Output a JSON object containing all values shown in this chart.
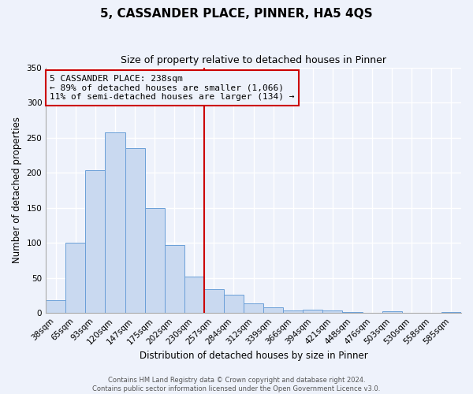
{
  "title": "5, CASSANDER PLACE, PINNER, HA5 4QS",
  "subtitle": "Size of property relative to detached houses in Pinner",
  "xlabel": "Distribution of detached houses by size in Pinner",
  "ylabel": "Number of detached properties",
  "bar_labels": [
    "38sqm",
    "65sqm",
    "93sqm",
    "120sqm",
    "147sqm",
    "175sqm",
    "202sqm",
    "230sqm",
    "257sqm",
    "284sqm",
    "312sqm",
    "339sqm",
    "366sqm",
    "394sqm",
    "421sqm",
    "448sqm",
    "476sqm",
    "503sqm",
    "530sqm",
    "558sqm",
    "585sqm"
  ],
  "bar_values": [
    18,
    100,
    204,
    257,
    235,
    150,
    97,
    52,
    34,
    26,
    14,
    8,
    4,
    5,
    4,
    1,
    0,
    2,
    0,
    0,
    1
  ],
  "bar_color_fill": "#c9d9f0",
  "bar_color_edge": "#6a9fd8",
  "vline_x": 7.5,
  "vline_color": "#cc0000",
  "annotation_title": "5 CASSANDER PLACE: 238sqm",
  "annotation_line1": "← 89% of detached houses are smaller (1,066)",
  "annotation_line2": "11% of semi-detached houses are larger (134) →",
  "annotation_box_color": "#cc0000",
  "ylim": [
    0,
    350
  ],
  "yticks": [
    0,
    50,
    100,
    150,
    200,
    250,
    300,
    350
  ],
  "footer1": "Contains HM Land Registry data © Crown copyright and database right 2024.",
  "footer2": "Contains public sector information licensed under the Open Government Licence v3.0.",
  "bg_color": "#eef2fb",
  "grid_color": "#ffffff",
  "title_fontsize": 11,
  "subtitle_fontsize": 9,
  "axis_label_fontsize": 8.5,
  "tick_fontsize": 7.5,
  "annotation_fontsize": 8,
  "footer_fontsize": 6
}
